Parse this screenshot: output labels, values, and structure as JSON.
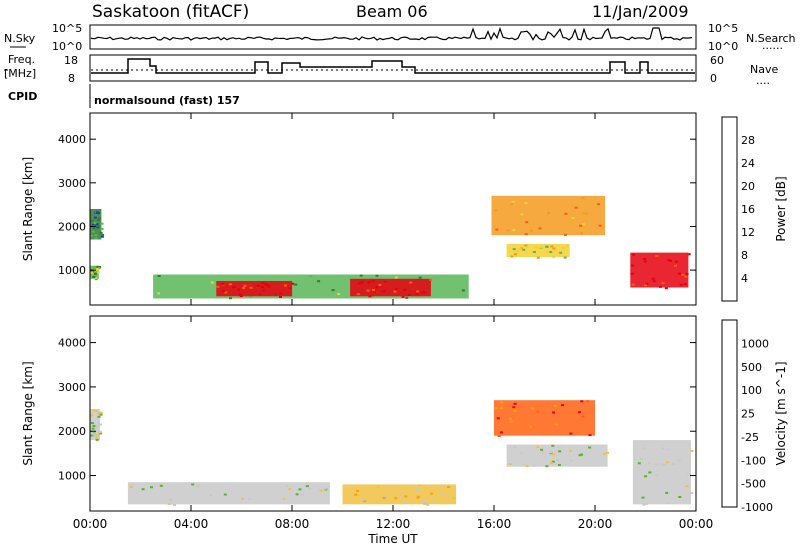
{
  "header": {
    "site": "Saskatoon (fitACF)",
    "beam": "Beam 06",
    "date": "11/Jan/2009"
  },
  "strip_labels": {
    "nsky": "N.Sky",
    "freq_line1": "Freq.",
    "freq_line2": "[MHz]",
    "cpid": "CPID",
    "nsearch": "N.Search",
    "nsearch_dots": "......",
    "nave": "Nave",
    "nave_dots": "....",
    "cpid_text": "normalsound (fast) 157"
  },
  "strip_ticks": {
    "noise_left": [
      "10^5",
      "10^0"
    ],
    "noise_right": [
      "10^5",
      "10^0"
    ],
    "freq_left": [
      "18",
      "8"
    ],
    "nave_right": [
      "60",
      "0"
    ]
  },
  "chart_data": [
    {
      "type": "heatmap",
      "title": "",
      "ylabel": "Slant Range [km]",
      "ylim": [
        200,
        4600
      ],
      "yticks": [
        "1000",
        "2000",
        "3000",
        "4000"
      ],
      "colorbar": {
        "label": "Power [dB]",
        "ticks": [
          "4",
          "8",
          "12",
          "16",
          "20",
          "24",
          "28"
        ],
        "colors": [
          "#0000e6",
          "#1e3cb4",
          "#2e7d32",
          "#58b658",
          "#f4d130",
          "#f39a1d",
          "#ff5a14",
          "#e6000f"
        ]
      },
      "regions": [
        {
          "t": [
            0.0,
            0.45
          ],
          "r": [
            1700,
            2400
          ],
          "level": 2
        },
        {
          "t": [
            0.0,
            0.35
          ],
          "r": [
            800,
            1100
          ],
          "level": 3
        },
        {
          "t": [
            2.5,
            15.0
          ],
          "r": [
            350,
            900
          ],
          "level": 3
        },
        {
          "t": [
            5.0,
            8.0
          ],
          "r": [
            400,
            750
          ],
          "level": 7
        },
        {
          "t": [
            10.3,
            13.5
          ],
          "r": [
            400,
            800
          ],
          "level": 7
        },
        {
          "t": [
            15.9,
            20.4
          ],
          "r": [
            1800,
            2700
          ],
          "level": 5
        },
        {
          "t": [
            16.5,
            19.0
          ],
          "r": [
            1300,
            1600
          ],
          "level": 4
        },
        {
          "t": [
            21.4,
            23.7
          ],
          "r": [
            600,
            1400
          ],
          "level": 7
        }
      ]
    },
    {
      "type": "heatmap",
      "title": "",
      "ylabel": "Slant Range [km]",
      "ylim": [
        200,
        4600
      ],
      "yticks": [
        "1000",
        "2000",
        "3000",
        "4000"
      ],
      "xlabel": "Time UT",
      "xticks": [
        "00:00",
        "04:00",
        "08:00",
        "12:00",
        "16:00",
        "20:00",
        "00:00"
      ],
      "xlim": [
        0,
        24
      ],
      "colorbar": {
        "label": "Velocity [m s^-1]",
        "ticks": [
          "1000",
          "500",
          "100",
          "25",
          "-25",
          "-100",
          "-500",
          "-1000"
        ],
        "colors": [
          "#2840b8",
          "#2a6a2a",
          "#59b22a",
          "#c8c8c8",
          "#f0c040",
          "#f4a010",
          "#ff6010",
          "#e60010"
        ]
      },
      "regions": [
        {
          "t": [
            0.0,
            0.4
          ],
          "r": [
            1800,
            2500
          ],
          "level": 3
        },
        {
          "t": [
            1.5,
            9.5
          ],
          "r": [
            350,
            850
          ],
          "level": 3
        },
        {
          "t": [
            10.0,
            14.5
          ],
          "r": [
            350,
            800
          ],
          "level": 4
        },
        {
          "t": [
            16.0,
            20.0
          ],
          "r": [
            1900,
            2700
          ],
          "level": 6
        },
        {
          "t": [
            16.5,
            20.5
          ],
          "r": [
            1200,
            1700
          ],
          "level": 3
        },
        {
          "t": [
            21.5,
            23.8
          ],
          "r": [
            350,
            1800
          ],
          "level": 3
        }
      ]
    }
  ]
}
